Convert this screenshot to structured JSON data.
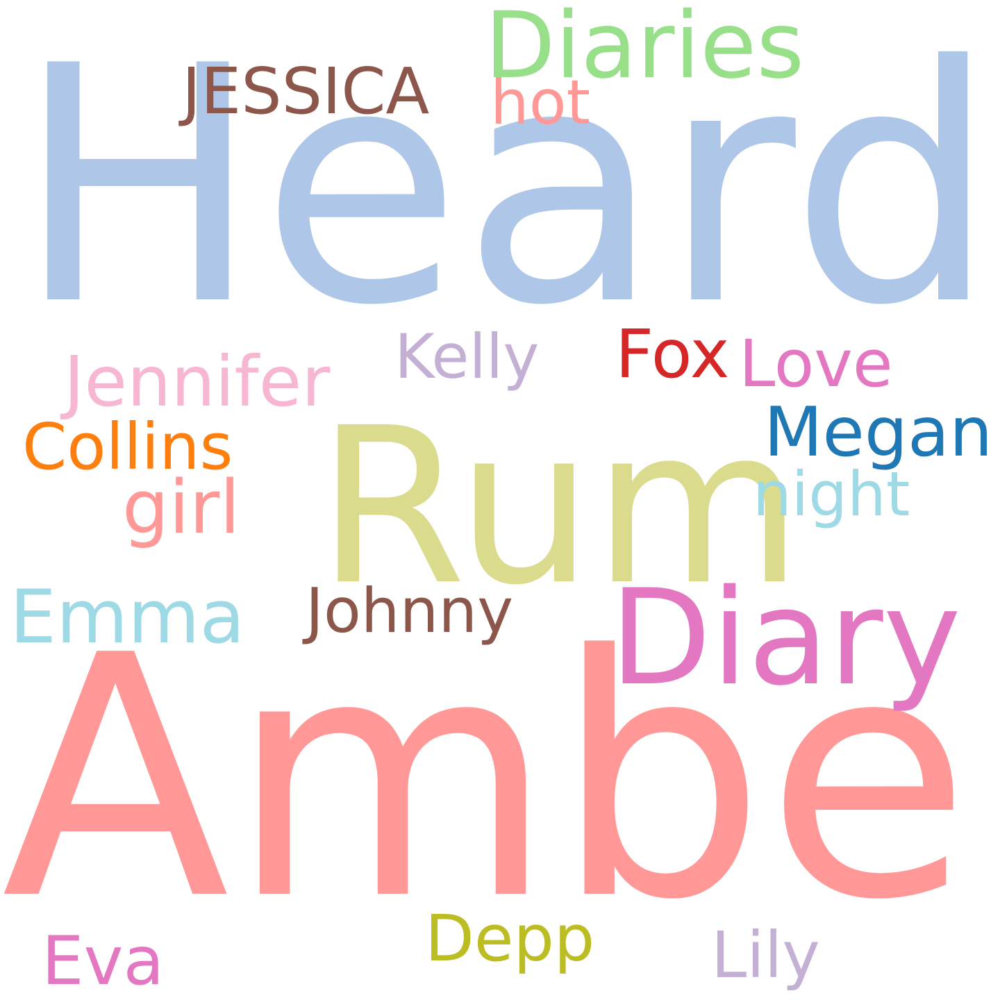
{
  "words": [
    {
      "text": "Heard",
      "color": "#aec7e8"
    },
    {
      "text": "Amber",
      "color": "#ff9896"
    },
    {
      "text": "Rum",
      "color": "#dbdb8d"
    },
    {
      "text": "Diary",
      "color": "#e377c2"
    },
    {
      "text": "Diaries",
      "color": "#98df8a"
    },
    {
      "text": "JESSICA",
      "color": "#8c564b"
    },
    {
      "text": "hot",
      "color": "#ff9896"
    },
    {
      "text": "Fox",
      "color": "#d62728"
    },
    {
      "text": "Love",
      "color": "#e377c2"
    },
    {
      "text": "Kelly",
      "color": "#c5b0d5"
    },
    {
      "text": "Jennifer",
      "color": "#f7b6d2"
    },
    {
      "text": "Megan",
      "color": "#1f77b4"
    },
    {
      "text": "Collins",
      "color": "#ff7f0e"
    },
    {
      "text": "girl",
      "color": "#ff9896"
    },
    {
      "text": "night",
      "color": "#9edae5"
    },
    {
      "text": "Emma",
      "color": "#9edae5"
    },
    {
      "text": "Johnny",
      "color": "#8c564b"
    },
    {
      "text": "Depp",
      "color": "#bcbd22"
    },
    {
      "text": "Eva",
      "color": "#e377c2"
    },
    {
      "text": "Lily",
      "color": "#c5b0d5"
    }
  ]
}
